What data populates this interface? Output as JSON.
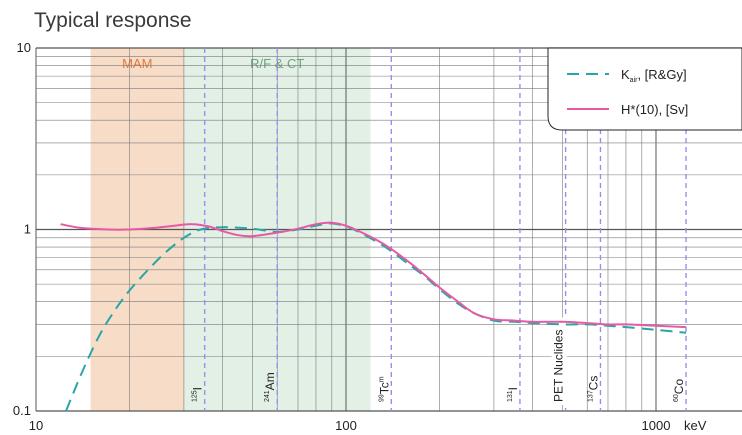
{
  "chart_data": {
    "type": "line",
    "title": "Typical response",
    "xscale": "log",
    "yscale": "log",
    "xlim": [
      10,
      2000
    ],
    "ylim": [
      0.1,
      10
    ],
    "x_ticks": [
      {
        "value": 10,
        "label": "10"
      },
      {
        "value": 100,
        "label": "100"
      },
      {
        "value": 1000,
        "label": "1000"
      }
    ],
    "x_unit": "keV",
    "y_ticks": [
      {
        "value": 10,
        "label": "10"
      },
      {
        "value": 1,
        "label": "1"
      },
      {
        "value": 0.1,
        "label": "0.1"
      }
    ],
    "grid": true,
    "legend_position": "top-right",
    "bands": [
      {
        "label": "MAM",
        "range": [
          15,
          30
        ],
        "color": "#f7dcc8",
        "label_color": "#e07b39"
      },
      {
        "label": "R/F & CT",
        "range": [
          30,
          120
        ],
        "color": "#e3f0e5",
        "label_color": "#6aa57a"
      }
    ],
    "isotopes": [
      {
        "sup": "125",
        "name": "I",
        "energy": 35
      },
      {
        "sup": "241",
        "name": "Am",
        "energy": 60
      },
      {
        "sup": "99",
        "name": "Tc",
        "post_sup": "m",
        "energy": 140
      },
      {
        "sup": "131",
        "name": "I",
        "energy": 364
      },
      {
        "sup": "",
        "name": "PET Nuclides",
        "energy": 511
      },
      {
        "sup": "137",
        "name": "Cs",
        "energy": 662
      },
      {
        "sup": "60",
        "name": "Co",
        "energy": 1250
      }
    ],
    "series": [
      {
        "name": "K",
        "name_sub": "air",
        "name_suffix": ", [R&Gy]",
        "color": "#2aa5a5",
        "dash": "dashed",
        "x": [
          12.5,
          14,
          16,
          18,
          20,
          23,
          26,
          30,
          34,
          40,
          50,
          60,
          70,
          80,
          90,
          100,
          110,
          125,
          140,
          160,
          180,
          200,
          230,
          260,
          300,
          350,
          400,
          500,
          600,
          700,
          800,
          1000,
          1250
        ],
        "y": [
          0.1,
          0.16,
          0.26,
          0.36,
          0.46,
          0.6,
          0.74,
          0.9,
          1.0,
          1.03,
          1.01,
          0.97,
          1.0,
          1.05,
          1.08,
          1.04,
          0.97,
          0.86,
          0.76,
          0.64,
          0.55,
          0.47,
          0.39,
          0.345,
          0.315,
          0.31,
          0.305,
          0.3,
          0.3,
          0.295,
          0.29,
          0.28,
          0.27
        ]
      },
      {
        "name": "H*(10), [Sv]",
        "color": "#e659a5",
        "dash": "solid",
        "x": [
          12,
          14,
          17,
          20,
          24,
          28,
          32,
          36,
          40,
          45,
          50,
          60,
          70,
          80,
          90,
          100,
          110,
          125,
          140,
          160,
          180,
          200,
          230,
          260,
          300,
          350,
          400,
          500,
          600,
          700,
          800,
          1000,
          1250
        ],
        "y": [
          1.07,
          1.02,
          1.0,
          1.0,
          1.02,
          1.05,
          1.07,
          1.04,
          0.98,
          0.93,
          0.92,
          0.96,
          1.01,
          1.07,
          1.09,
          1.05,
          0.98,
          0.88,
          0.78,
          0.66,
          0.56,
          0.48,
          0.4,
          0.345,
          0.32,
          0.315,
          0.31,
          0.31,
          0.305,
          0.3,
          0.3,
          0.295,
          0.29
        ]
      }
    ]
  }
}
